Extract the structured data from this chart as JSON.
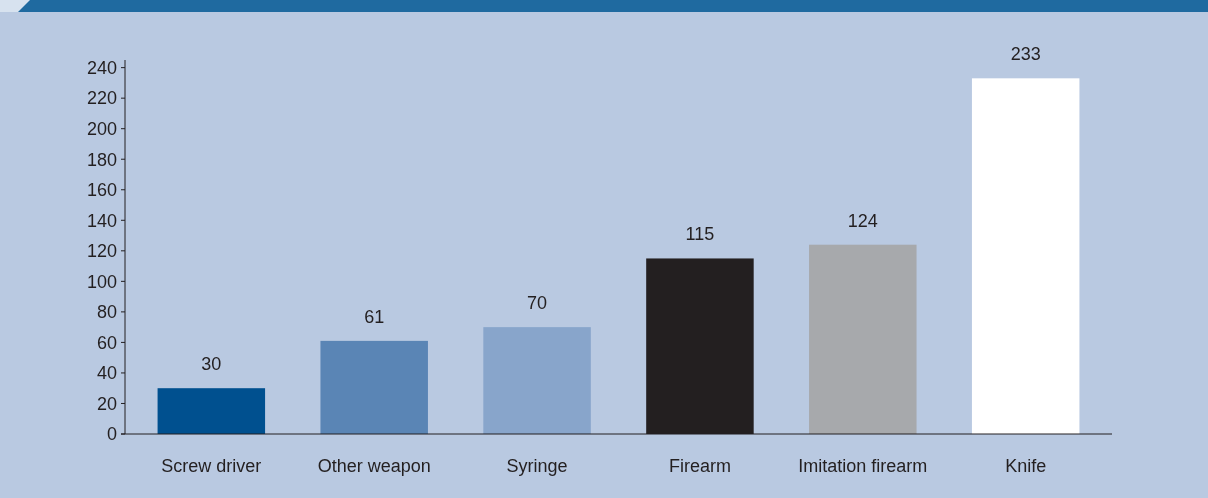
{
  "chart_data": {
    "type": "bar",
    "categories": [
      "Screw driver",
      "Other weapon",
      "Syringe",
      "Firearm",
      "Imitation firearm",
      "Knife"
    ],
    "values": [
      30,
      61,
      70,
      115,
      124,
      233
    ],
    "colors": [
      "#00508f",
      "#5a85b5",
      "#88a5cb",
      "#231f20",
      "#a7a9ac",
      "#ffffff"
    ],
    "ylim": [
      0,
      245
    ],
    "yticks": [
      0,
      20,
      40,
      60,
      80,
      100,
      120,
      140,
      160,
      180,
      200,
      220,
      240
    ],
    "data_labels": true,
    "grid": false
  }
}
